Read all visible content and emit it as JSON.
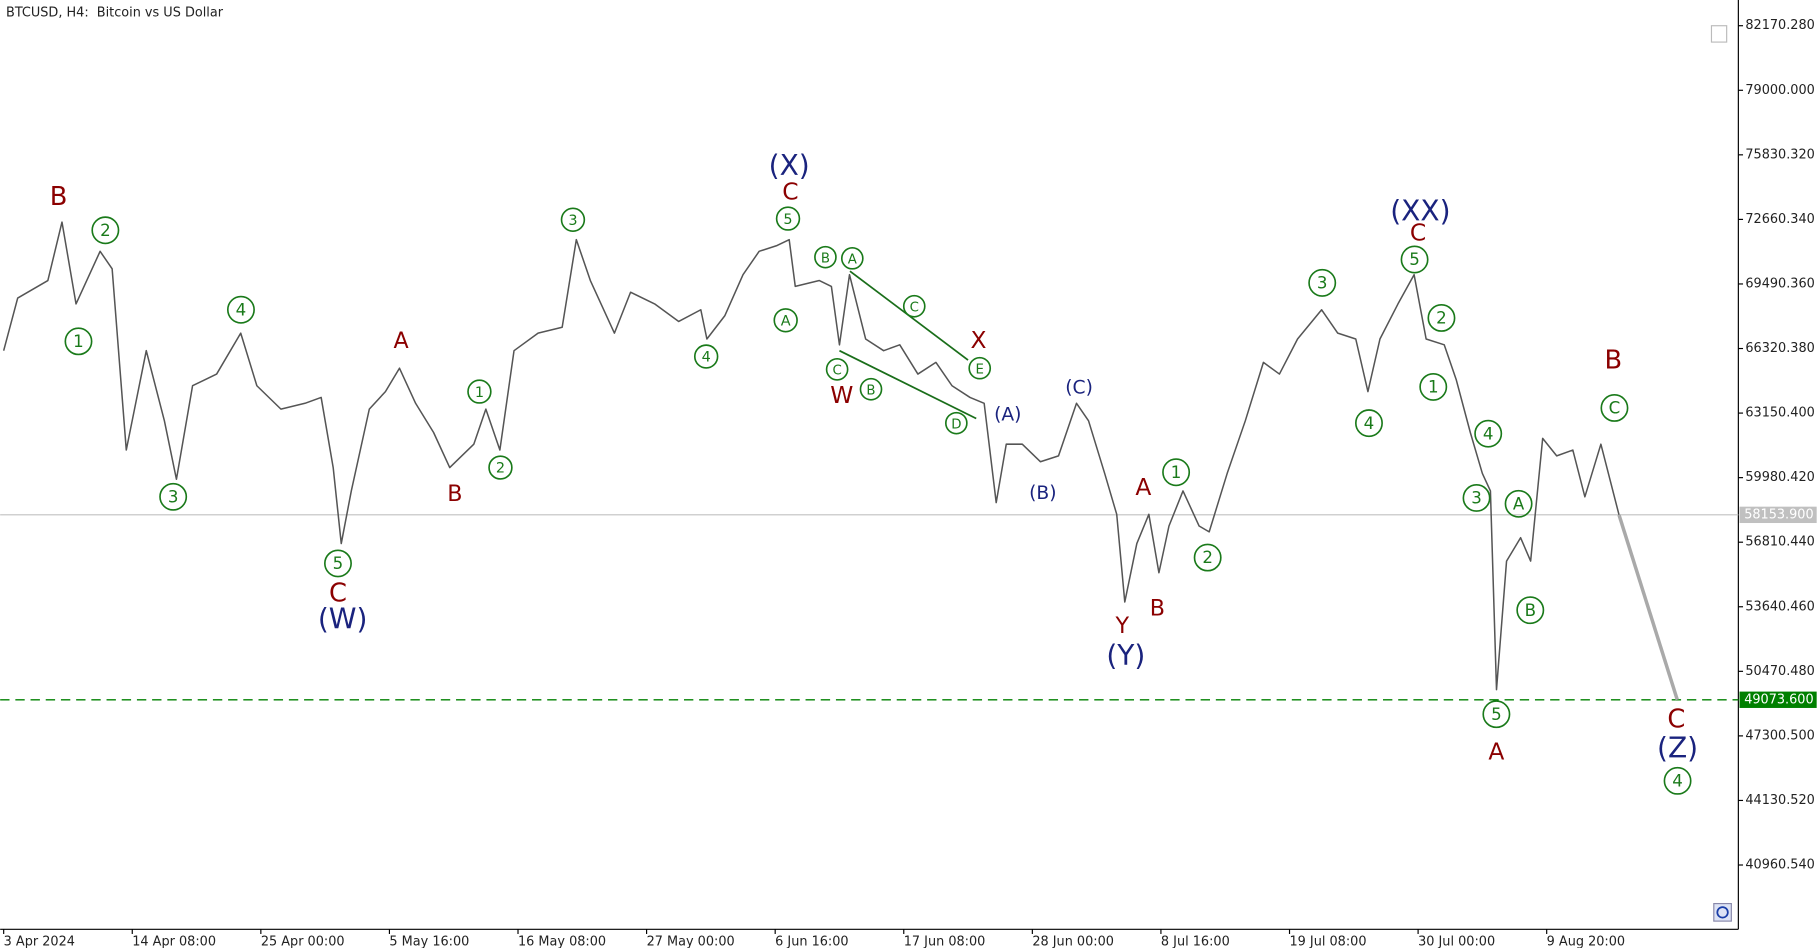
{
  "chart_data": {
    "type": "line",
    "title": "BTCUSD, H4:  Bitcoin vs US Dollar",
    "color": "#555555",
    "x": [
      0,
      7,
      22,
      29,
      36,
      48,
      54,
      61,
      71,
      80,
      86,
      94,
      106,
      118,
      126,
      138,
      150,
      158,
      164,
      168,
      173,
      182,
      190,
      197,
      205,
      214,
      222,
      234,
      240,
      247,
      254,
      266,
      278,
      285,
      292,
      304,
      312,
      324,
      336,
      347,
      350,
      359,
      368,
      376,
      385,
      391,
      394,
      406,
      412,
      416,
      421,
      429,
      438,
      446,
      455,
      464,
      472,
      481,
      488,
      494,
      499,
      507,
      516,
      525,
      534,
      540,
      548,
      554,
      558,
      564,
      570,
      575,
      580,
      587,
      595,
      600,
      609,
      618,
      627,
      635,
      644,
      656,
      664,
      673,
      679,
      685,
      694,
      702,
      708,
      717,
      723,
      730,
      736,
      740,
      743,
      748,
      755,
      760,
      766,
      773,
      781,
      787,
      795,
      804
    ],
    "values": [
      66216,
      68798,
      69659,
      72528,
      68511,
      71094,
      70233,
      61337,
      66216,
      62772,
      59903,
      64494,
      65068,
      67076,
      64494,
      63346,
      63633,
      63920,
      60477,
      56746,
      59329,
      63346,
      64207,
      65355,
      63633,
      62198,
      60477,
      61624,
      63346,
      61337,
      66216,
      67076,
      67363,
      71668,
      69659,
      67076,
      69085,
      68511,
      67650,
      68224,
      66789,
      67937,
      69946,
      71094,
      71381,
      71668,
      69372,
      69659,
      69372,
      66503,
      69946,
      66789,
      66216,
      66503,
      65068,
      65642,
      64494,
      63920,
      63633,
      58755,
      61624,
      61624,
      60764,
      61050,
      63633,
      62772,
      60190,
      58181,
      53877,
      56746,
      58181,
      55311,
      57607,
      59329,
      57607,
      57320,
      60190,
      62772,
      65642,
      65068,
      66789,
      68224,
      67076,
      66789,
      64207,
      66789,
      68511,
      69946,
      66789,
      66503,
      64781,
      62198,
      60190,
      59329,
      49572,
      55885,
      57033,
      55885,
      61911,
      61050,
      61337,
      59042,
      61624,
      58154
    ],
    "forecast": {
      "x": [
        804,
        833
      ],
      "values": [
        58153.9,
        49073.6
      ],
      "color": "#a9a9a9"
    },
    "levels": [
      {
        "value": 58153.9,
        "label": "58153.900",
        "color": "#c0c0c0",
        "dashed": false
      },
      {
        "value": 49073.6,
        "label": "49073.600",
        "color": "#008000",
        "dashed": true
      }
    ],
    "xlim": [
      -1.75,
      863.4
    ],
    "ylim": [
      37804,
      83433
    ],
    "xticks": [
      {
        "value": 0,
        "label": "3 Apr 2024"
      },
      {
        "value": 64,
        "label": "14 Apr 08:00"
      },
      {
        "value": 128,
        "label": "25 Apr 00:00"
      },
      {
        "value": 192,
        "label": "5 May 16:00"
      },
      {
        "value": 256,
        "label": "16 May 08:00"
      },
      {
        "value": 320,
        "label": "27 May 00:00"
      },
      {
        "value": 384,
        "label": "6 Jun 16:00"
      },
      {
        "value": 448,
        "label": "17 Jun 08:00"
      },
      {
        "value": 512,
        "label": "28 Jun 00:00"
      },
      {
        "value": 576,
        "label": "8 Jul 16:00"
      },
      {
        "value": 640,
        "label": "19 Jul 08:00"
      },
      {
        "value": 704,
        "label": "30 Jul 00:00"
      },
      {
        "value": 768,
        "label": "9 Aug 20:00"
      }
    ],
    "yticks": [
      {
        "value": 82170.28,
        "label": "82170.280"
      },
      {
        "value": 79000,
        "label": "79000.000"
      },
      {
        "value": 75830.32,
        "label": "75830.320"
      },
      {
        "value": 72660.34,
        "label": "72660.340"
      },
      {
        "value": 69490.36,
        "label": "69490.360"
      },
      {
        "value": 66320.38,
        "label": "66320.380"
      },
      {
        "value": 63150.4,
        "label": "63150.400"
      },
      {
        "value": 59980.42,
        "label": "59980.420"
      },
      {
        "value": 56810.44,
        "label": "56810.440"
      },
      {
        "value": 53640.46,
        "label": "53640.460"
      },
      {
        "value": 50470.48,
        "label": "50470.480"
      },
      {
        "value": 47300.5,
        "label": "47300.500"
      },
      {
        "value": 44130.52,
        "label": "44130.520"
      },
      {
        "value": 40960.54,
        "label": "40960.540"
      }
    ],
    "annotations": [
      {
        "text": "B",
        "color": "#8b0000",
        "circled": false
      },
      {
        "text": "2",
        "color": "#1a7a1a",
        "circled": true
      },
      {
        "text": "1",
        "color": "#1a7a1a",
        "circled": true
      },
      {
        "text": "3",
        "color": "#1a7a1a",
        "circled": true
      },
      {
        "text": "4",
        "color": "#1a7a1a",
        "circled": true
      },
      {
        "text": "A",
        "color": "#8b0000",
        "circled": false
      },
      {
        "text": "5",
        "color": "#1a7a1a",
        "circled": true
      },
      {
        "text": "C",
        "color": "#8b0000",
        "circled": false
      },
      {
        "text": "(W)",
        "color": "#1a237e",
        "circled": false
      },
      {
        "text": "B",
        "color": "#8b0000",
        "circled": false
      },
      {
        "text": "1",
        "color": "#1a7a1a",
        "circled": true
      },
      {
        "text": "2",
        "color": "#1a7a1a",
        "circled": true
      },
      {
        "text": "3",
        "color": "#1a7a1a",
        "circled": true
      },
      {
        "text": "4",
        "color": "#1a7a1a",
        "circled": true
      },
      {
        "text": "(X)",
        "color": "#1a237e",
        "circled": false
      },
      {
        "text": "C",
        "color": "#8b0000",
        "circled": false
      },
      {
        "text": "5",
        "color": "#1a7a1a",
        "circled": true
      },
      {
        "text": "A",
        "color": "#1a7a1a",
        "circled": true
      },
      {
        "text": "B",
        "color": "#1a7a1a",
        "circled": true
      },
      {
        "text": "A",
        "color": "#1a7a1a",
        "circled": true
      },
      {
        "text": "C",
        "color": "#1a7a1a",
        "circled": true
      },
      {
        "text": "B",
        "color": "#1a7a1a",
        "circled": true
      },
      {
        "text": "W",
        "color": "#8b0000",
        "circled": false
      },
      {
        "text": "C",
        "color": "#1a7a1a",
        "circled": true
      },
      {
        "text": "X",
        "color": "#8b0000",
        "circled": false
      },
      {
        "text": "E",
        "color": "#1a7a1a",
        "circled": true
      },
      {
        "text": "D",
        "color": "#1a7a1a",
        "circled": true
      },
      {
        "text": "(A)",
        "color": "#1a237e",
        "circled": false
      },
      {
        "text": "(C)",
        "color": "#1a237e",
        "circled": false
      },
      {
        "text": "(B)",
        "color": "#1a237e",
        "circled": false
      },
      {
        "text": "A",
        "color": "#8b0000",
        "circled": false
      },
      {
        "text": "1",
        "color": "#1a7a1a",
        "circled": true
      },
      {
        "text": "2",
        "color": "#1a7a1a",
        "circled": true
      },
      {
        "text": "Y",
        "color": "#8b0000",
        "circled": false
      },
      {
        "text": "B",
        "color": "#8b0000",
        "circled": false
      },
      {
        "text": "(Y)",
        "color": "#1a237e",
        "circled": false
      },
      {
        "text": "3",
        "color": "#1a7a1a",
        "circled": true
      },
      {
        "text": "4",
        "color": "#1a7a1a",
        "circled": true
      },
      {
        "text": "(XX)",
        "color": "#1a237e",
        "circled": false
      },
      {
        "text": "C",
        "color": "#8b0000",
        "circled": false
      },
      {
        "text": "5",
        "color": "#1a7a1a",
        "circled": true
      },
      {
        "text": "2",
        "color": "#1a7a1a",
        "circled": true
      },
      {
        "text": "1",
        "color": "#1a7a1a",
        "circled": true
      },
      {
        "text": "4",
        "color": "#1a7a1a",
        "circled": true
      },
      {
        "text": "3",
        "color": "#1a7a1a",
        "circled": true
      },
      {
        "text": "A",
        "color": "#1a7a1a",
        "circled": true
      },
      {
        "text": "B",
        "color": "#1a7a1a",
        "circled": true
      },
      {
        "text": "5",
        "color": "#1a7a1a",
        "circled": true
      },
      {
        "text": "A",
        "color": "#8b0000",
        "circled": false
      },
      {
        "text": "B",
        "color": "#8b0000",
        "circled": false
      },
      {
        "text": "C",
        "color": "#1a7a1a",
        "circled": true
      },
      {
        "text": "C",
        "color": "#8b0000",
        "circled": false
      },
      {
        "text": "(Z)",
        "color": "#1a237e",
        "circled": false
      },
      {
        "text": "4",
        "color": "#1a7a1a",
        "circled": true
      }
    ]
  }
}
